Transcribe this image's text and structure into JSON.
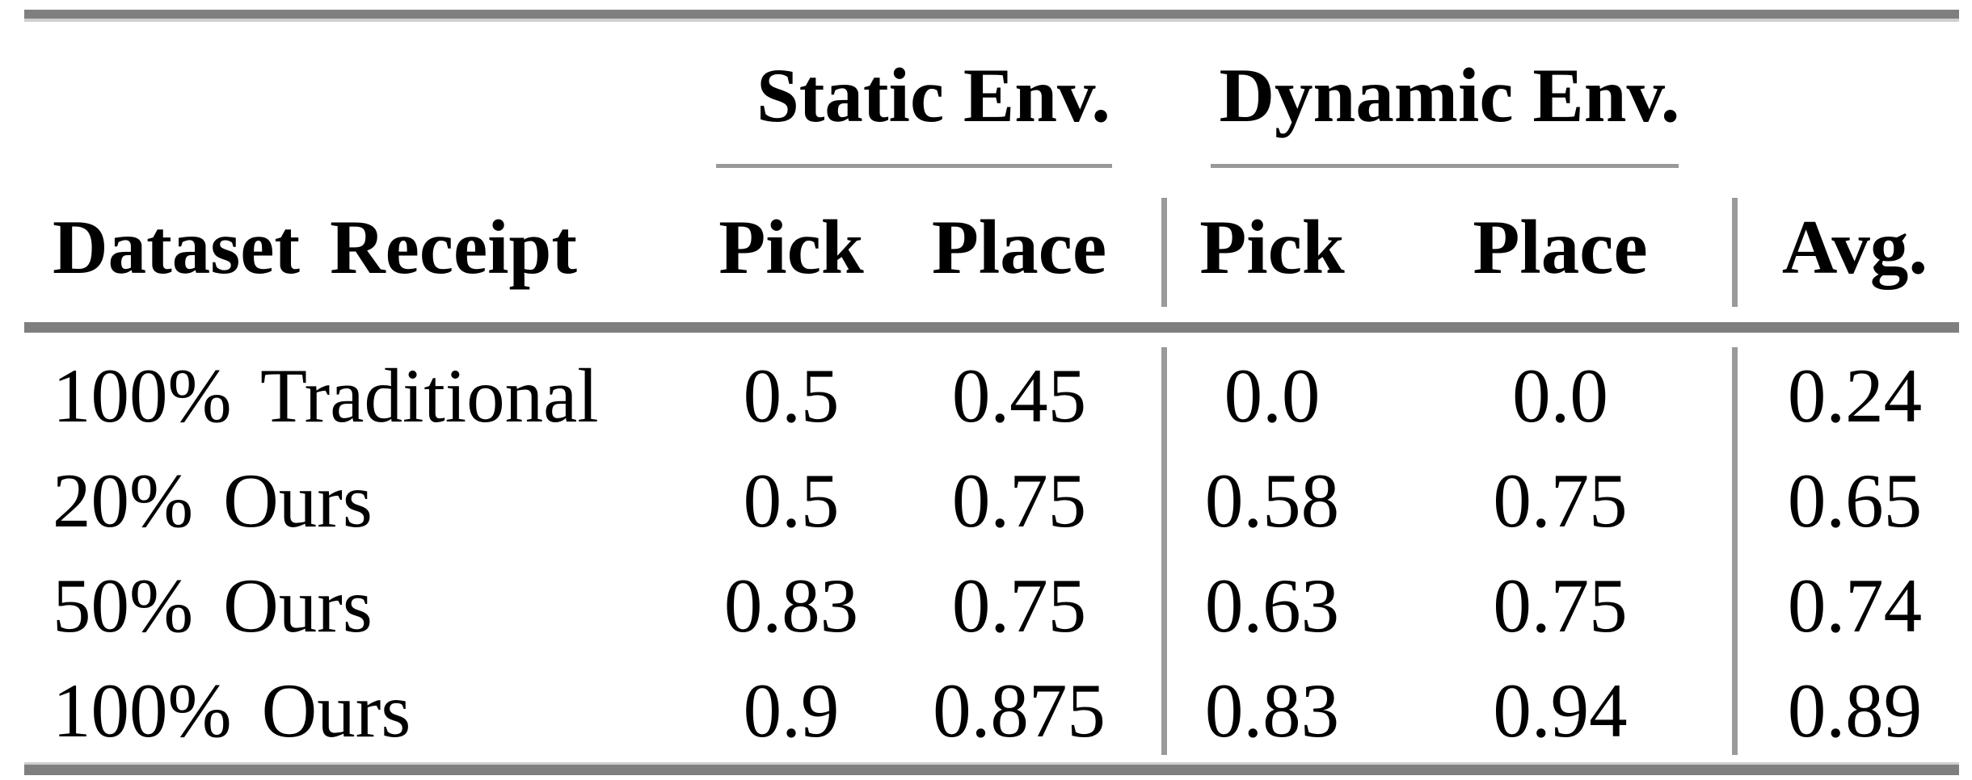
{
  "table": {
    "group_headers": [
      {
        "label": "Static Env."
      },
      {
        "label": "Dynamic Env."
      }
    ],
    "columns": {
      "row_header": "Dataset Receipt",
      "static_pick": "Pick",
      "static_place": "Place",
      "dynamic_pick": "Pick",
      "dynamic_place": "Place",
      "avg": "Avg."
    },
    "rows": [
      {
        "label": "100% Traditional",
        "static_pick": "0.5",
        "static_place": "0.45",
        "dynamic_pick": "0.0",
        "dynamic_place": "0.0",
        "avg": "0.24"
      },
      {
        "label": "20% Ours",
        "static_pick": "0.5",
        "static_place": "0.75",
        "dynamic_pick": "0.58",
        "dynamic_place": "0.75",
        "avg": "0.65"
      },
      {
        "label": "50% Ours",
        "static_pick": "0.83",
        "static_place": "0.75",
        "dynamic_pick": "0.63",
        "dynamic_place": "0.75",
        "avg": "0.74"
      },
      {
        "label": "100% Ours",
        "static_pick": "0.9",
        "static_place": "0.875",
        "dynamic_pick": "0.83",
        "dynamic_place": "0.94",
        "avg": "0.89"
      }
    ],
    "colors": {
      "text": "#000000",
      "background": "#ffffff",
      "rule_thick": "#7f7f7f",
      "rule_thin": "#999999",
      "rule_light_edge": "#cfcfcf"
    }
  }
}
